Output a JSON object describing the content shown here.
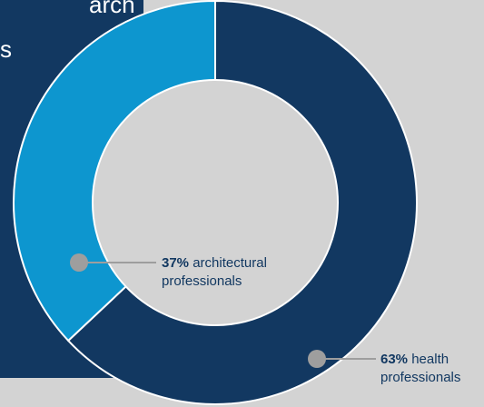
{
  "panel": {
    "line1": "arch",
    "line2": "s"
  },
  "colors": {
    "background": "#d3d3d3",
    "panel": "#123861",
    "health": "#123861",
    "architectural": "#0d96cf",
    "center": "#d3d3d3",
    "callout": "#9e9e9e"
  },
  "chart_data": {
    "type": "pie",
    "donut": true,
    "title": "",
    "slices": [
      {
        "label": "health professionals",
        "value": 63,
        "display": "63%",
        "desc_line1": "health",
        "desc_line2": "professionals",
        "color": "#123861"
      },
      {
        "label": "architectural professionals",
        "value": 37,
        "display": "37%",
        "desc_line1": "architectural",
        "desc_line2": "professionals",
        "color": "#0d96cf"
      }
    ]
  }
}
